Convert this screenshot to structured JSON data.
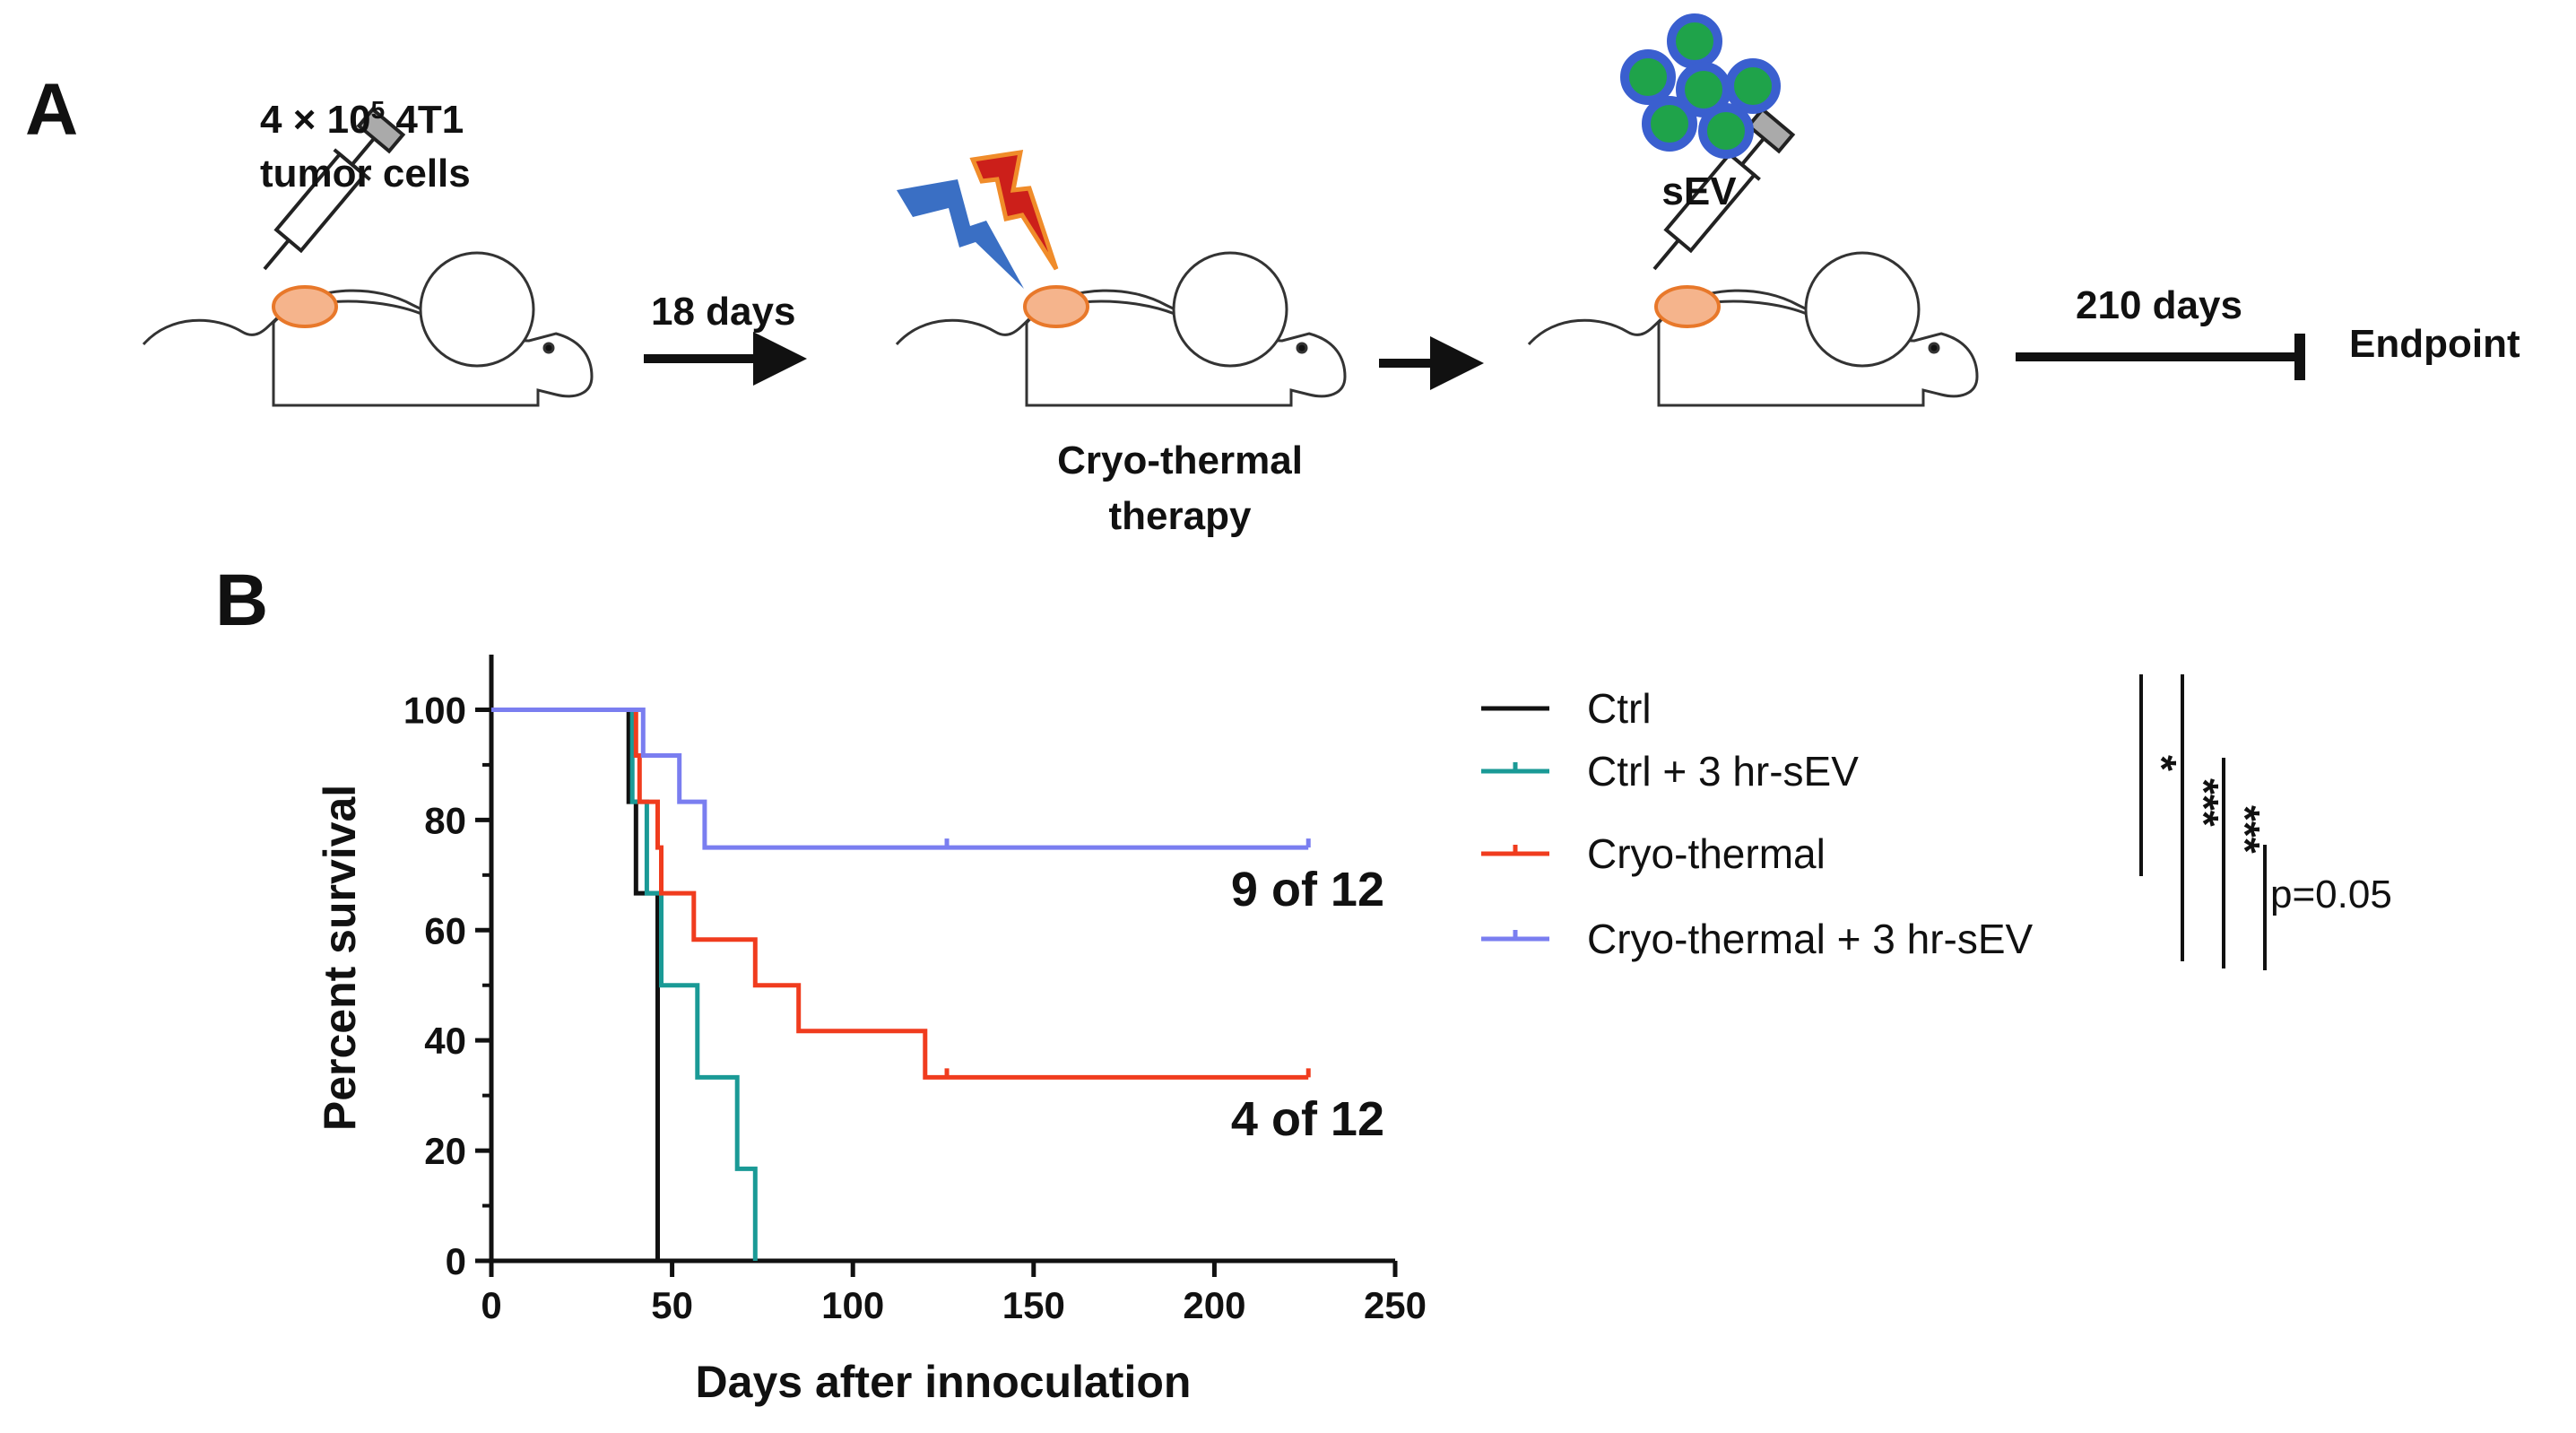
{
  "panel_a": {
    "label": "A",
    "cells_text_prefix": "4 × 10",
    "cells_text_exp": "5",
    "cells_text_suffix": " 4T1",
    "cells_text_line2": "tumor cells",
    "arrow1_label": "18 days",
    "therapy_line1": "Cryo-thermal",
    "therapy_line2": "therapy",
    "sev_label": "sEV",
    "arrow3_label": "210 days",
    "endpoint_label": "Endpoint",
    "colors": {
      "tumor_fill": "#f5b48c",
      "tumor_stroke": "#e8782a",
      "cold_bolt": "#3a6fc4",
      "hot_bolt": "#cc1f1a",
      "hot_bolt_stroke": "#f08c2a",
      "sev_fill": "#1fa34a",
      "sev_ring": "#3a5fcf"
    }
  },
  "panel_b": {
    "label": "B",
    "annotation_top": "9 of 12",
    "annotation_bottom": "4 of 12",
    "significance": [
      "*",
      "***",
      "***",
      "p=0.05"
    ]
  },
  "chart_data": {
    "type": "line",
    "subtype": "kaplan-meier step",
    "xlabel": "Days after innoculation",
    "ylabel": "Percent survival",
    "xlim": [
      0,
      250
    ],
    "ylim": [
      0,
      110
    ],
    "xticks": [
      0,
      50,
      100,
      150,
      200,
      250
    ],
    "yticks": [
      0,
      20,
      40,
      60,
      80,
      100
    ],
    "legend_position": "right",
    "series": [
      {
        "name": "Ctrl",
        "color": "#111111",
        "steps": [
          [
            0,
            100
          ],
          [
            38,
            100
          ],
          [
            38,
            83.3
          ],
          [
            40,
            83.3
          ],
          [
            40,
            66.7
          ],
          [
            46,
            66.7
          ],
          [
            46,
            0
          ]
        ],
        "censor": []
      },
      {
        "name": "Ctrl + 3 hr-sEV",
        "color": "#1a9a96",
        "steps": [
          [
            0,
            100
          ],
          [
            39,
            100
          ],
          [
            39,
            83.3
          ],
          [
            43,
            83.3
          ],
          [
            43,
            66.7
          ],
          [
            47,
            66.7
          ],
          [
            47,
            50
          ],
          [
            57,
            50
          ],
          [
            57,
            33.3
          ],
          [
            68,
            33.3
          ],
          [
            68,
            16.7
          ],
          [
            73,
            16.7
          ],
          [
            73,
            0
          ]
        ],
        "censor": []
      },
      {
        "name": "Cryo-thermal",
        "color": "#f03c1e",
        "steps": [
          [
            0,
            100
          ],
          [
            40,
            100
          ],
          [
            40,
            91.7
          ],
          [
            41,
            91.7
          ],
          [
            41,
            83.3
          ],
          [
            46,
            83.3
          ],
          [
            46,
            75
          ],
          [
            47,
            75
          ],
          [
            47,
            66.7
          ],
          [
            56,
            66.7
          ],
          [
            56,
            58.3
          ],
          [
            73,
            58.3
          ],
          [
            73,
            50
          ],
          [
            85,
            50
          ],
          [
            85,
            41.7
          ],
          [
            120,
            41.7
          ],
          [
            120,
            33.3
          ],
          [
            226,
            33.3
          ]
        ],
        "censor": [
          [
            126,
            33.3
          ],
          [
            226,
            33.3
          ]
        ]
      },
      {
        "name": "Cryo-thermal + 3 hr-sEV",
        "color": "#7a7ef0",
        "steps": [
          [
            0,
            100
          ],
          [
            42,
            100
          ],
          [
            42,
            91.7
          ],
          [
            52,
            91.7
          ],
          [
            52,
            83.3
          ],
          [
            59,
            83.3
          ],
          [
            59,
            75
          ],
          [
            226,
            75
          ]
        ],
        "censor": [
          [
            126,
            75
          ],
          [
            226,
            75
          ]
        ]
      }
    ]
  }
}
